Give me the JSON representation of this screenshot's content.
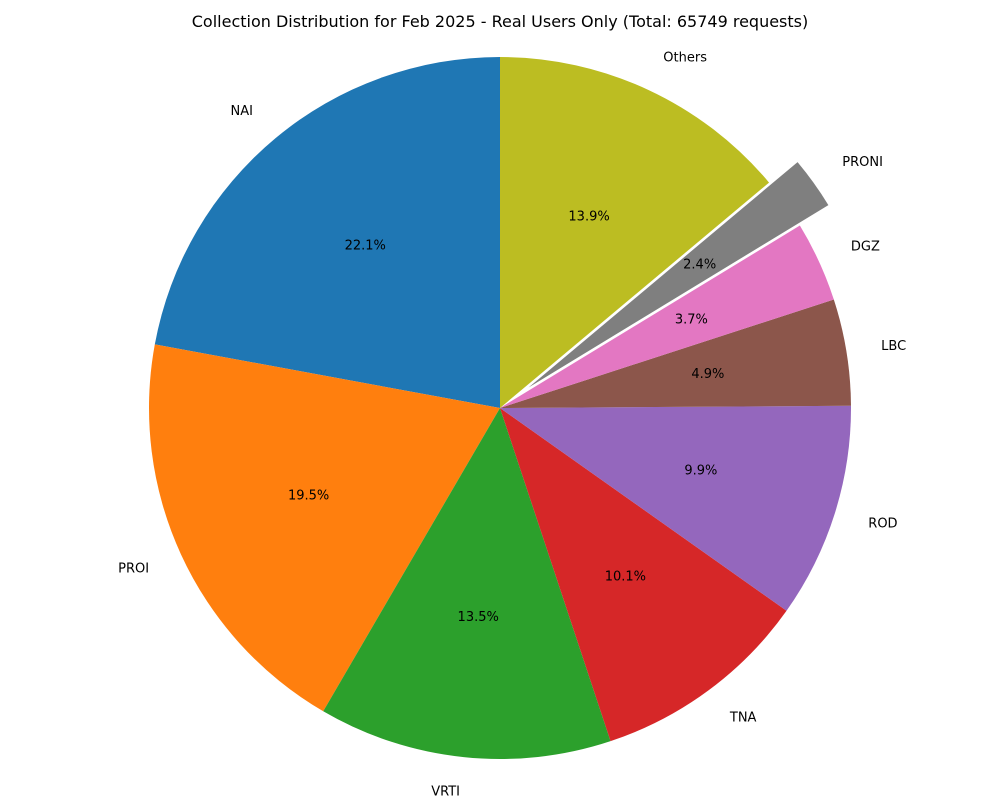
{
  "chart_data": {
    "type": "pie",
    "title": "Collection Distribution for Feb 2025 - Real Users Only (Total: 65749 requests)",
    "total_requests": 65749,
    "start_angle_deg": 90,
    "direction": "counterclockwise",
    "slices": [
      {
        "label": "NAI",
        "value": 22.1,
        "pct_label": "22.1%",
        "color": "#1f77b4",
        "exploded": false
      },
      {
        "label": "PROI",
        "value": 19.5,
        "pct_label": "19.5%",
        "color": "#ff7f0e",
        "exploded": false
      },
      {
        "label": "VRTI",
        "value": 13.5,
        "pct_label": "13.5%",
        "color": "#2ca02c",
        "exploded": false
      },
      {
        "label": "TNA",
        "value": 10.1,
        "pct_label": "10.1%",
        "color": "#d62728",
        "exploded": false
      },
      {
        "label": "ROD",
        "value": 9.9,
        "pct_label": "9.9%",
        "color": "#9467bd",
        "exploded": false
      },
      {
        "label": "LBC",
        "value": 4.9,
        "pct_label": "4.9%",
        "color": "#8c564b",
        "exploded": false
      },
      {
        "label": "DGZ",
        "value": 3.7,
        "pct_label": "3.7%",
        "color": "#e377c2",
        "exploded": false
      },
      {
        "label": "PRONI",
        "value": 2.4,
        "pct_label": "2.4%",
        "color": "#7f7f7f",
        "exploded": true
      },
      {
        "label": "Others",
        "value": 13.9,
        "pct_label": "13.9%",
        "color": "#bcbd22",
        "exploded": false
      }
    ]
  }
}
